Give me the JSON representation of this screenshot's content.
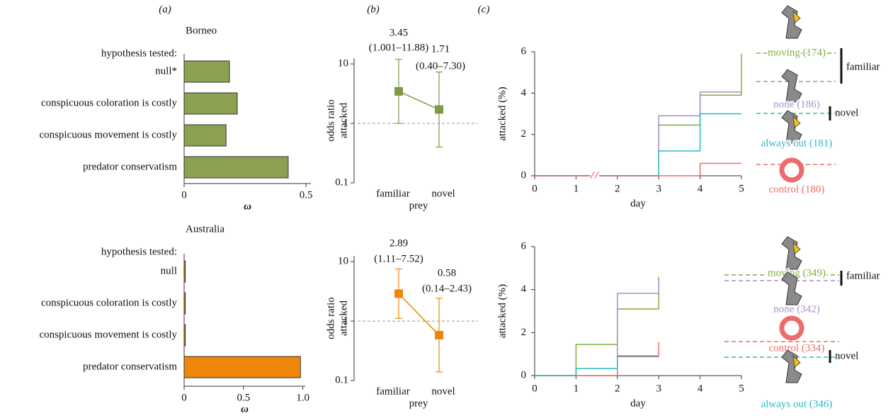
{
  "chart_data": [
    {
      "type": "bar",
      "panel": "(a)",
      "title": "Borneo",
      "subtitle": "hypothesis tested:",
      "categories": [
        "null*",
        "conspicuous coloration is costly",
        "conspicuous movement is costly",
        "predator conservatism"
      ],
      "values": [
        0.186,
        0.218,
        0.172,
        0.427
      ],
      "color": "#8aa24f",
      "xlim": [
        0,
        0.52
      ],
      "xticks": [
        0,
        0.5
      ],
      "xlabel": "ω"
    },
    {
      "type": "errorbar",
      "panel": "(b)",
      "ylabel": [
        "odds ratio",
        "attacked"
      ],
      "xlabel": "prey",
      "categories": [
        "familiar",
        "novel"
      ],
      "values": [
        3.45,
        1.71
      ],
      "value_labels": [
        "3.45",
        "1.71"
      ],
      "errors": [
        [
          1.001,
          11.88
        ],
        [
          0.4,
          7.3
        ]
      ],
      "error_labels": [
        "(1.001–11.88)",
        "(0.40–7.30)"
      ],
      "color": "#7f9a45",
      "yscale": "log",
      "ylim": [
        0.1,
        12.5
      ],
      "yticks": [
        0.1,
        1,
        10
      ],
      "reference_line": 1
    },
    {
      "type": "step",
      "panel": "(c)",
      "xlabel": "day",
      "ylabel": "attacked (%)",
      "x": [
        0,
        1,
        2,
        3,
        4,
        5
      ],
      "series": [
        {
          "name": "moving (174)",
          "color": "#7fae3c",
          "values": [
            0,
            0,
            0,
            2.45,
            3.9,
            5.9
          ]
        },
        {
          "name": "none (186)",
          "color": "#a98ccc",
          "values": [
            0,
            0,
            0,
            2.9,
            4.05,
            4.05
          ]
        },
        {
          "name": "always out (181)",
          "color": "#2bb8c4",
          "values": [
            0,
            0,
            0,
            1.2,
            3.0,
            3.0
          ]
        },
        {
          "name": "control (180)",
          "color": "#ec6b6b",
          "values": [
            0,
            0,
            0,
            0,
            0.6,
            0.6
          ]
        }
      ],
      "xlim": [
        0,
        5
      ],
      "ylim": [
        0,
        6
      ],
      "xticks": [
        0,
        1,
        2,
        3,
        4,
        5
      ],
      "yticks": [
        0,
        2,
        4,
        6
      ],
      "axis_break": true,
      "groups": [
        "familiar",
        "novel"
      ]
    },
    {
      "type": "bar",
      "title": "Australia",
      "subtitle": "hypothesis tested:",
      "categories": [
        "null",
        "conspicuous coloration is costly",
        "conspicuous movement is costly",
        "predator conservatism"
      ],
      "values": [
        0.01,
        0.01,
        0.01,
        0.98
      ],
      "color": "#ee8609",
      "xlim": [
        0,
        1.02
      ],
      "xticks": [
        0,
        0.5,
        {
          "value": 1,
          "label": "1.0"
        }
      ],
      "xlabel": "ω"
    },
    {
      "type": "errorbar",
      "ylabel": [
        "odds ratio",
        "attacked"
      ],
      "xlabel": "prey",
      "categories": [
        "familiar",
        "novel"
      ],
      "values": [
        2.89,
        0.58
      ],
      "value_labels": [
        "2.89",
        "0.58"
      ],
      "errors": [
        [
          1.11,
          7.52
        ],
        [
          0.14,
          2.43
        ]
      ],
      "error_labels": [
        "(1.11–7.52)",
        "(0.14–2.43)"
      ],
      "color": "#ee8609",
      "yscale": "log",
      "ylim": [
        0.1,
        12.5
      ],
      "yticks": [
        0.1,
        1,
        10
      ],
      "reference_line": 1
    },
    {
      "type": "step",
      "xlabel": "day",
      "ylabel": "attacked (%)",
      "x": [
        0,
        1,
        2,
        3
      ],
      "series": [
        {
          "name": "moving (349)",
          "color": "#7fae3c",
          "values": [
            0,
            1.45,
            3.1,
            4.6
          ]
        },
        {
          "name": "none (342)",
          "color": "#a98ccc",
          "values": [
            0,
            0,
            3.83,
            4.45
          ]
        },
        {
          "name": "control (334)",
          "color": "#ec6b6b",
          "values": [
            0,
            0,
            0.88,
            1.55
          ]
        },
        {
          "name": "always out (346)",
          "color": "#2bb8c4",
          "values": [
            0,
            0.33,
            0.92,
            0.92
          ]
        }
      ],
      "xlim": [
        0,
        5
      ],
      "ylim": [
        0,
        6
      ],
      "xticks": [
        0,
        1,
        2,
        3,
        4,
        5
      ],
      "yticks": [
        0,
        2,
        4,
        6
      ],
      "groups": [
        "familiar",
        "novel"
      ]
    }
  ]
}
